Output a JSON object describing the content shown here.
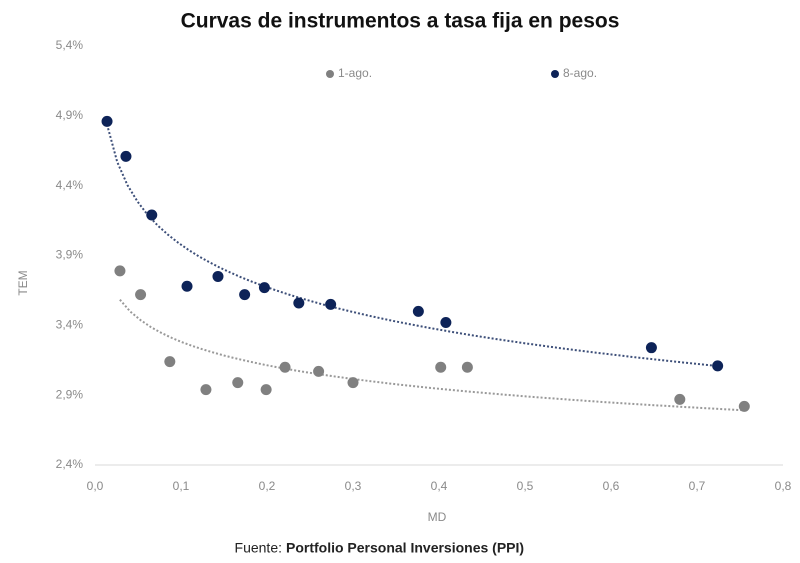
{
  "chart_data": {
    "type": "scatter",
    "title": "Curvas de instrumentos a tasa fija en pesos",
    "x_label": "MD",
    "y_label": "TEM",
    "source_prefix": "Fuente:",
    "source": "Portfolio Personal Inversiones (PPI)",
    "xlim": [
      0,
      0.8
    ],
    "ylim": [
      2.4,
      5.4
    ],
    "xticks": [
      {
        "value": 0,
        "label": "0,0"
      },
      {
        "value": 0.1,
        "label": "0,1"
      },
      {
        "value": 0.2,
        "label": "0,2"
      },
      {
        "value": 0.3,
        "label": "0,3"
      },
      {
        "value": 0.4,
        "label": "0,4"
      },
      {
        "value": 0.5,
        "label": "0,5"
      },
      {
        "value": 0.6,
        "label": "0,6"
      },
      {
        "value": 0.7,
        "label": "0,7"
      },
      {
        "value": 0.8,
        "label": "0,8"
      }
    ],
    "yticks": [
      {
        "value": 2.4,
        "label": "2,4%"
      },
      {
        "value": 2.9,
        "label": "2,9%"
      },
      {
        "value": 3.4,
        "label": "3,4%"
      },
      {
        "value": 3.9,
        "label": "3,9%"
      },
      {
        "value": 4.4,
        "label": "4,4%"
      },
      {
        "value": 4.9,
        "label": "4,9%"
      },
      {
        "value": 5.4,
        "label": "5,4%"
      }
    ],
    "trendline": "logarithmic",
    "series": [
      {
        "name": "1-ago.",
        "color": "#808080",
        "x": [
          0.029,
          0.053,
          0.087,
          0.129,
          0.166,
          0.199,
          0.221,
          0.26,
          0.3,
          0.402,
          0.433,
          0.68,
          0.755
        ],
        "values": [
          3.79,
          3.62,
          3.14,
          2.94,
          2.99,
          2.94,
          3.1,
          3.07,
          2.99,
          3.1,
          3.1,
          2.87,
          2.82
        ]
      },
      {
        "name": "8-ago.",
        "color": "#0d2358",
        "x": [
          0.014,
          0.036,
          0.066,
          0.107,
          0.143,
          0.174,
          0.197,
          0.237,
          0.274,
          0.376,
          0.408,
          0.647,
          0.724
        ],
        "values": [
          4.86,
          4.61,
          4.19,
          3.68,
          3.75,
          3.62,
          3.67,
          3.56,
          3.55,
          3.5,
          3.42,
          3.24,
          3.11
        ]
      }
    ]
  }
}
